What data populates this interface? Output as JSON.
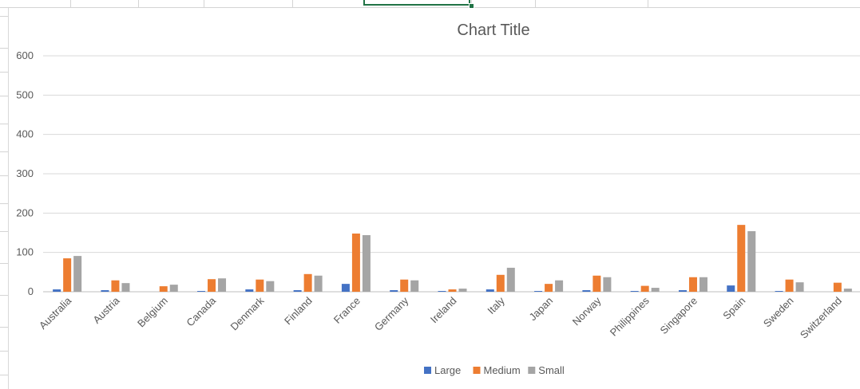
{
  "chart_data": {
    "type": "bar",
    "title": "Chart Title",
    "categories": [
      "Australia",
      "Austria",
      "Belgium",
      "Canada",
      "Denmark",
      "Finland",
      "France",
      "Germany",
      "Ireland",
      "Italy",
      "Japan",
      "Norway",
      "Philippines",
      "Singapore",
      "Spain",
      "Sweden",
      "Switzerland"
    ],
    "series": [
      {
        "name": "Large",
        "color": "#4472c4",
        "values": [
          6,
          4,
          0,
          2,
          6,
          4,
          20,
          4,
          2,
          6,
          2,
          4,
          2,
          4,
          16,
          2,
          0
        ]
      },
      {
        "name": "Medium",
        "color": "#ed7d31",
        "values": [
          85,
          29,
          14,
          32,
          31,
          45,
          148,
          31,
          6,
          43,
          20,
          41,
          15,
          37,
          170,
          31,
          23
        ]
      },
      {
        "name": "Small",
        "color": "#a5a5a5",
        "values": [
          91,
          22,
          18,
          34,
          27,
          41,
          144,
          29,
          8,
          61,
          29,
          37,
          10,
          37,
          154,
          24,
          8
        ]
      }
    ],
    "y_ticks": [
      "0",
      "100",
      "200",
      "300",
      "400",
      "500",
      "600"
    ],
    "ylim": [
      0,
      600
    ],
    "grid": true,
    "legend": "bottom"
  }
}
